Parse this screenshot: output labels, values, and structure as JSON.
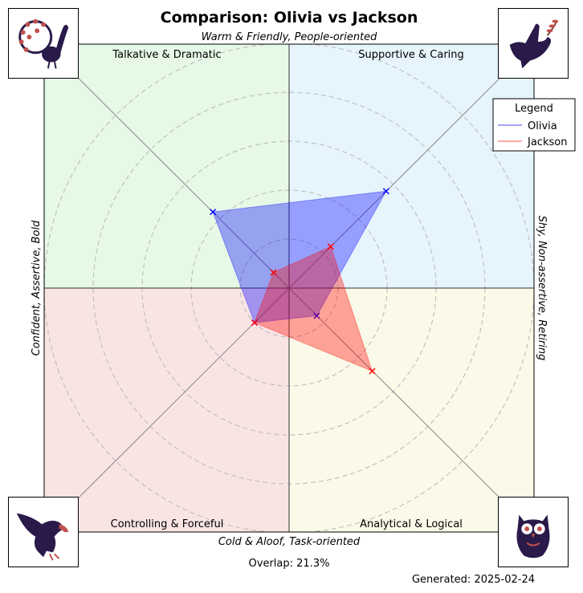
{
  "chart_data": {
    "type": "radar",
    "title": "Comparison: Olivia vs Jackson",
    "axis_labels": {
      "top": "Warm & Friendly, People-oriented",
      "bottom": "Cold & Aloof, Task-oriented",
      "left": "Confident, Assertive, Bold",
      "right": "Shy, Non-assertive, Retiring"
    },
    "quadrants": [
      {
        "label": "Talkative & Dramatic",
        "color": "#e6f8e6",
        "icon": "peacock-icon"
      },
      {
        "label": "Supportive & Caring",
        "color": "#e6f4fc",
        "icon": "dove-icon"
      },
      {
        "label": "Controlling & Forceful",
        "color": "#f9e4e4",
        "icon": "eagle-icon"
      },
      {
        "label": "Analytical & Logical",
        "color": "#fbf9e8",
        "icon": "owl-icon"
      }
    ],
    "directions": [
      "Talkative & Dramatic",
      "Supportive & Caring",
      "Analytical & Logical",
      "Controlling & Forceful"
    ],
    "radius_max": 1.0,
    "ring_values": [
      0.2,
      0.4,
      0.6,
      0.8,
      1.0
    ],
    "grid": true,
    "legend": {
      "title": "Legend",
      "position": "top-right"
    },
    "series": [
      {
        "name": "Olivia",
        "color": "#0000ff",
        "values": [
          0.44,
          0.56,
          0.16,
          0.2
        ]
      },
      {
        "name": "Jackson",
        "color": "#ff0000",
        "values": [
          0.09,
          0.24,
          0.48,
          0.2
        ]
      }
    ],
    "overlap_text": "Overlap: 21.3%",
    "generated_text": "Generated: 2025-02-24"
  }
}
